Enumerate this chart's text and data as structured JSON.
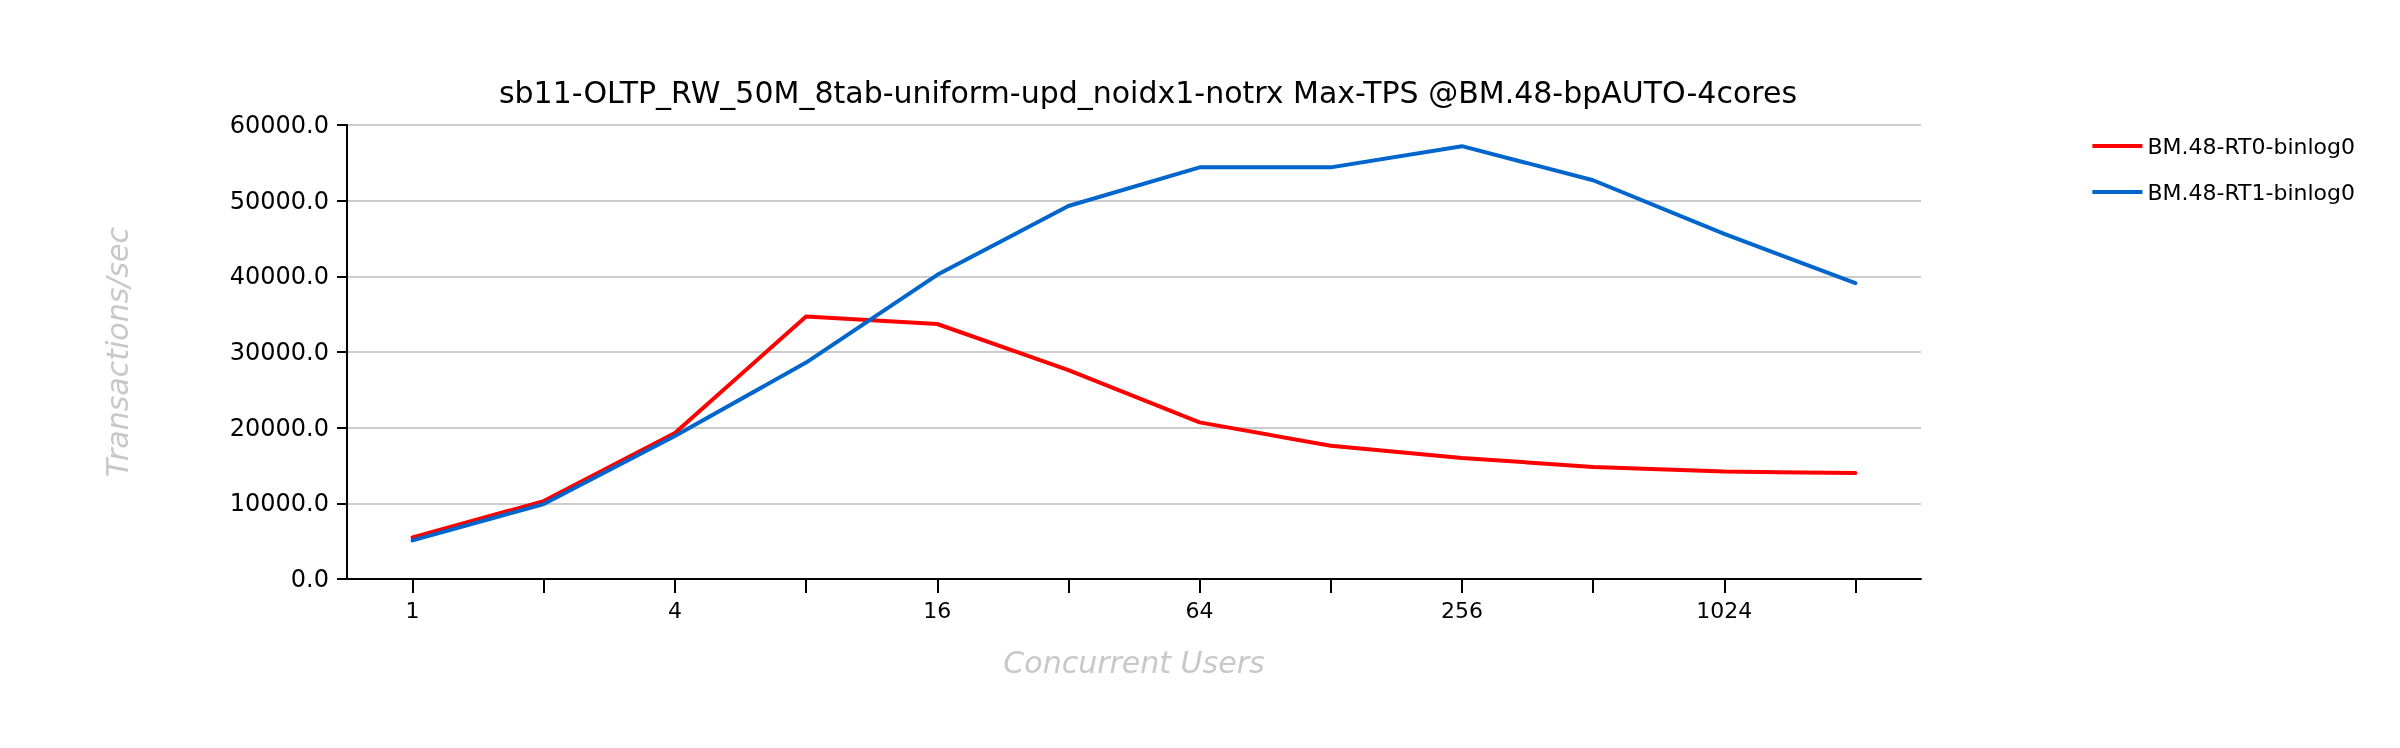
{
  "chart_data": {
    "type": "line",
    "title": "sb11-OLTP_RW_50M_8tab-uniform-upd_noidx1-notrx Max-TPS @BM.48-bpAUTO-4cores",
    "xlabel": "Concurrent Users",
    "ylabel": "Transactions/sec",
    "categories": [
      "1",
      null,
      "4",
      null,
      "16",
      null,
      "64",
      null,
      "256",
      null,
      "1024",
      null
    ],
    "series": [
      {
        "name": "BM.48-RT0-binlog0",
        "color": "#ff0000",
        "values": [
          5500,
          10300,
          19300,
          34700,
          33700,
          27600,
          20700,
          17600,
          16000,
          14800,
          14200,
          14000
        ]
      },
      {
        "name": "BM.48-RT1-binlog0",
        "color": "#0066cc",
        "values": [
          5100,
          9900,
          18900,
          28600,
          40200,
          49300,
          54400,
          54400,
          57200,
          52700,
          45600,
          39100
        ]
      }
    ],
    "ylim": [
      0,
      60000
    ],
    "yticks": [
      {
        "value": 0,
        "label": "0.0"
      },
      {
        "value": 10000,
        "label": "10000.0"
      },
      {
        "value": 20000,
        "label": "20000.0"
      },
      {
        "value": 30000,
        "label": "30000.0"
      },
      {
        "value": 40000,
        "label": "40000.0"
      },
      {
        "value": 50000,
        "label": "50000.0"
      },
      {
        "value": 60000,
        "label": "60000.0"
      }
    ],
    "grid": "y",
    "legend": "top right",
    "marker": "none",
    "line_style": "solid"
  }
}
